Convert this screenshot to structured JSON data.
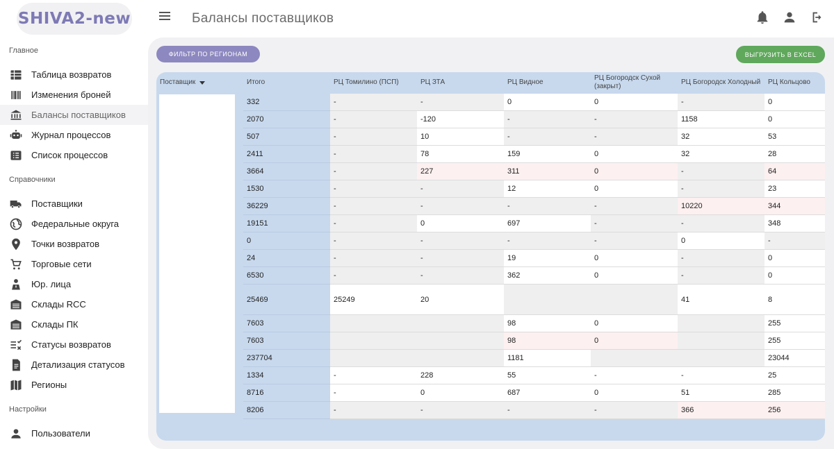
{
  "app": {
    "logo": "SHIVA2-new",
    "page_title": "Балансы поставщиков",
    "header_icons": [
      "bell-icon",
      "user-icon",
      "logout-icon"
    ]
  },
  "sidebar": {
    "sections": [
      {
        "title": "Главное",
        "items": [
          {
            "label": "Таблица возвратов",
            "icon": "table-icon"
          },
          {
            "label": "Изменения броней",
            "icon": "barcode-icon"
          },
          {
            "label": "Балансы поставщиков",
            "icon": "bank-icon",
            "active": true
          },
          {
            "label": "Журнал процессов",
            "icon": "robot-icon"
          },
          {
            "label": "Список процессов",
            "icon": "list-icon"
          }
        ]
      },
      {
        "title": "Справочники",
        "items": [
          {
            "label": "Поставщики",
            "icon": "truck-icon"
          },
          {
            "label": "Федеральные округа",
            "icon": "globe-icon"
          },
          {
            "label": "Точки возвратов",
            "icon": "pin-icon"
          },
          {
            "label": "Торговые сети",
            "icon": "cart-icon"
          },
          {
            "label": "Юр. лица",
            "icon": "person-icon"
          },
          {
            "label": "Склады RCC",
            "icon": "warehouse-icon"
          },
          {
            "label": "Склады ПК",
            "icon": "warehouse-icon"
          },
          {
            "label": "Статусы возвратов",
            "icon": "checklist-icon"
          },
          {
            "label": "Детализация статусов",
            "icon": "document-icon"
          },
          {
            "label": "Регионы",
            "icon": "map-icon"
          }
        ]
      },
      {
        "title": "Настройки",
        "items": [
          {
            "label": "Пользователи",
            "icon": "user-icon"
          }
        ]
      }
    ]
  },
  "toolbar": {
    "filter_label": "Фильтр по регионам",
    "export_label": "Выгрузить в Excel"
  },
  "table": {
    "columns": [
      {
        "label": "Поставщик",
        "sortable": true
      },
      {
        "label": "Итого"
      },
      {
        "label": "РЦ Томилино (ПСП)"
      },
      {
        "label": "РЦ ЗТА"
      },
      {
        "label": "РЦ Видное"
      },
      {
        "label": "РЦ Богородск Сухой (закрыт)"
      },
      {
        "label": "РЦ Богородск Холодный"
      },
      {
        "label": "РЦ Кольцово"
      }
    ],
    "rows": [
      {
        "total": "332",
        "cells": [
          "-",
          "-",
          "0",
          "0",
          "-",
          "0"
        ],
        "bg": [
          "g",
          "g",
          "w",
          "w",
          "g",
          "w"
        ]
      },
      {
        "total": "2070",
        "cells": [
          "-",
          "-120",
          "-",
          "-",
          "1158",
          "0"
        ],
        "bg": [
          "g",
          "w",
          "g",
          "g",
          "w",
          "w"
        ]
      },
      {
        "total": "507",
        "cells": [
          "-",
          "10",
          "-",
          "-",
          "32",
          "53"
        ],
        "bg": [
          "g",
          "w",
          "g",
          "g",
          "w",
          "w"
        ]
      },
      {
        "total": "2411",
        "cells": [
          "-",
          "78",
          "159",
          "0",
          "32",
          "28"
        ],
        "bg": [
          "g",
          "w",
          "w",
          "w",
          "w",
          "w"
        ]
      },
      {
        "total": "3664",
        "cells": [
          "-",
          "227",
          "311",
          "0",
          "-",
          "64"
        ],
        "bg": [
          "g",
          "p",
          "p",
          "p",
          "g",
          "p"
        ]
      },
      {
        "total": "1530",
        "cells": [
          "-",
          "-",
          "12",
          "0",
          "-",
          "23"
        ],
        "bg": [
          "g",
          "g",
          "w",
          "w",
          "g",
          "w"
        ]
      },
      {
        "total": "36229",
        "cells": [
          "-",
          "-",
          "-",
          "-",
          "10220",
          "344"
        ],
        "bg": [
          "g",
          "g",
          "g",
          "g",
          "p",
          "p"
        ]
      },
      {
        "total": "19151",
        "cells": [
          "-",
          "0",
          "697",
          "-",
          "-",
          "348"
        ],
        "bg": [
          "g",
          "w",
          "w",
          "g",
          "g",
          "w"
        ]
      },
      {
        "total": "0",
        "cells": [
          "-",
          "-",
          "-",
          "-",
          "0",
          "-"
        ],
        "bg": [
          "g",
          "g",
          "g",
          "g",
          "w",
          "g"
        ]
      },
      {
        "total": "24",
        "cells": [
          "-",
          "-",
          "19",
          "0",
          "-",
          "0"
        ],
        "bg": [
          "g",
          "g",
          "w",
          "w",
          "g",
          "w"
        ]
      },
      {
        "total": "6530",
        "cells": [
          "-",
          "-",
          "362",
          "0",
          "-",
          "0"
        ],
        "bg": [
          "g",
          "g",
          "w",
          "w",
          "g",
          "w"
        ]
      },
      {
        "total": "25469",
        "cells": [
          "25249",
          "20",
          "",
          "",
          "41",
          "8"
        ],
        "bg": [
          "w",
          "w",
          "g",
          "g",
          "w",
          "w"
        ],
        "tall": true
      },
      {
        "total": "7603",
        "cells": [
          "",
          "",
          "98",
          "0",
          "",
          "255"
        ],
        "bg": [
          "g",
          "g",
          "w",
          "w",
          "g",
          "w"
        ]
      },
      {
        "total": "7603",
        "cells": [
          "",
          "",
          "98",
          "0",
          "",
          "255"
        ],
        "bg": [
          "g",
          "g",
          "p",
          "p",
          "g",
          "w"
        ]
      },
      {
        "total": "237704",
        "cells": [
          "",
          "",
          "1181",
          "",
          "",
          "23044"
        ],
        "bg": [
          "g",
          "g",
          "w",
          "g",
          "g",
          "w"
        ]
      },
      {
        "total": "1334",
        "cells": [
          "-",
          "228",
          "55",
          "-",
          "-",
          "25"
        ],
        "bg": [
          "w",
          "w",
          "w",
          "w",
          "w",
          "w"
        ]
      },
      {
        "total": "8716",
        "cells": [
          "-",
          "0",
          "687",
          "0",
          "51",
          "285"
        ],
        "bg": [
          "w",
          "w",
          "w",
          "w",
          "w",
          "w"
        ]
      },
      {
        "total": "8206",
        "cells": [
          "-",
          "-",
          "-",
          "-",
          "366",
          "256"
        ],
        "bg": [
          "g",
          "g",
          "g",
          "g",
          "p",
          "p"
        ]
      }
    ]
  }
}
